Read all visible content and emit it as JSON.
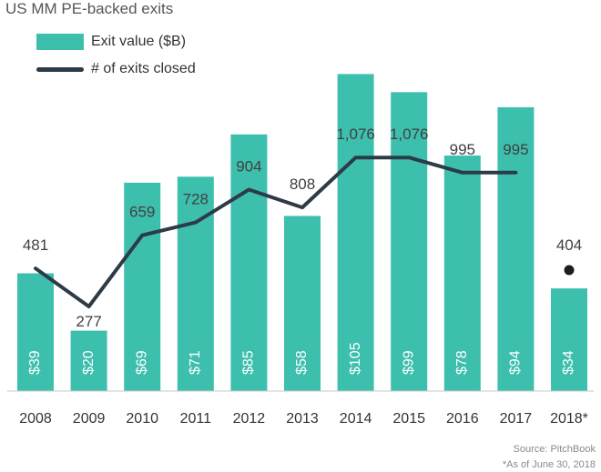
{
  "chart_data": {
    "type": "bar",
    "title": "US MM PE-backed exits",
    "categories": [
      "2008",
      "2009",
      "2010",
      "2011",
      "2012",
      "2013",
      "2014",
      "2015",
      "2016",
      "2017",
      "2018*"
    ],
    "series": [
      {
        "name": "Exit value ($B)",
        "type": "bar",
        "values": [
          39,
          20,
          69,
          71,
          85,
          58,
          105,
          99,
          78,
          94,
          34
        ],
        "labels": [
          "$39",
          "$20",
          "$69",
          "$71",
          "$85",
          "$58",
          "$105",
          "$99",
          "$78",
          "$94",
          "$34"
        ],
        "color": "#3dbfae"
      },
      {
        "name": "# of exits closed",
        "type": "line",
        "values": [
          481,
          277,
          659,
          728,
          904,
          808,
          1076,
          1076,
          995,
          995,
          404
        ],
        "labels": [
          "481",
          "277",
          "659",
          "728",
          "904",
          "808",
          "1,076",
          "1,076",
          "995",
          "995",
          "404"
        ],
        "color": "#2d3b48",
        "note": "2018 value shown as a standalone point"
      }
    ],
    "grid": false,
    "legend": "top-left"
  },
  "footnotes": {
    "source": "Source: PitchBook",
    "asof": "*As of June 30, 2018"
  }
}
